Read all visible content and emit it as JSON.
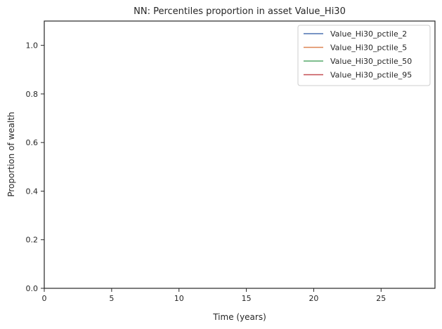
{
  "chart_data": {
    "type": "line",
    "title": "NN: Percentiles proportion in asset Value_Hi30",
    "xlabel": "Time (years)",
    "ylabel": "Proportion of wealth",
    "xlim": [
      0,
      29
    ],
    "ylim": [
      0,
      1.1
    ],
    "xticks": [
      0,
      5,
      10,
      15,
      20,
      25
    ],
    "xtick_labels": [
      "0",
      "5",
      "10",
      "15",
      "20",
      "25"
    ],
    "yticks": [
      0,
      0.2,
      0.4,
      0.6,
      0.8,
      1.0
    ],
    "ytick_labels": [
      "0.0",
      "0.2",
      "0.4",
      "0.6",
      "0.8",
      "1.0"
    ],
    "grid": false,
    "legend_position": "top-right",
    "series": [
      {
        "name": "Value_Hi30_pctile_2",
        "color": "#4c72b0",
        "x": [],
        "values": []
      },
      {
        "name": "Value_Hi30_pctile_5",
        "color": "#dd8452",
        "x": [],
        "values": []
      },
      {
        "name": "Value_Hi30_pctile_50",
        "color": "#55a868",
        "x": [],
        "values": []
      },
      {
        "name": "Value_Hi30_pctile_95",
        "color": "#c44e52",
        "x": [],
        "values": []
      }
    ]
  }
}
